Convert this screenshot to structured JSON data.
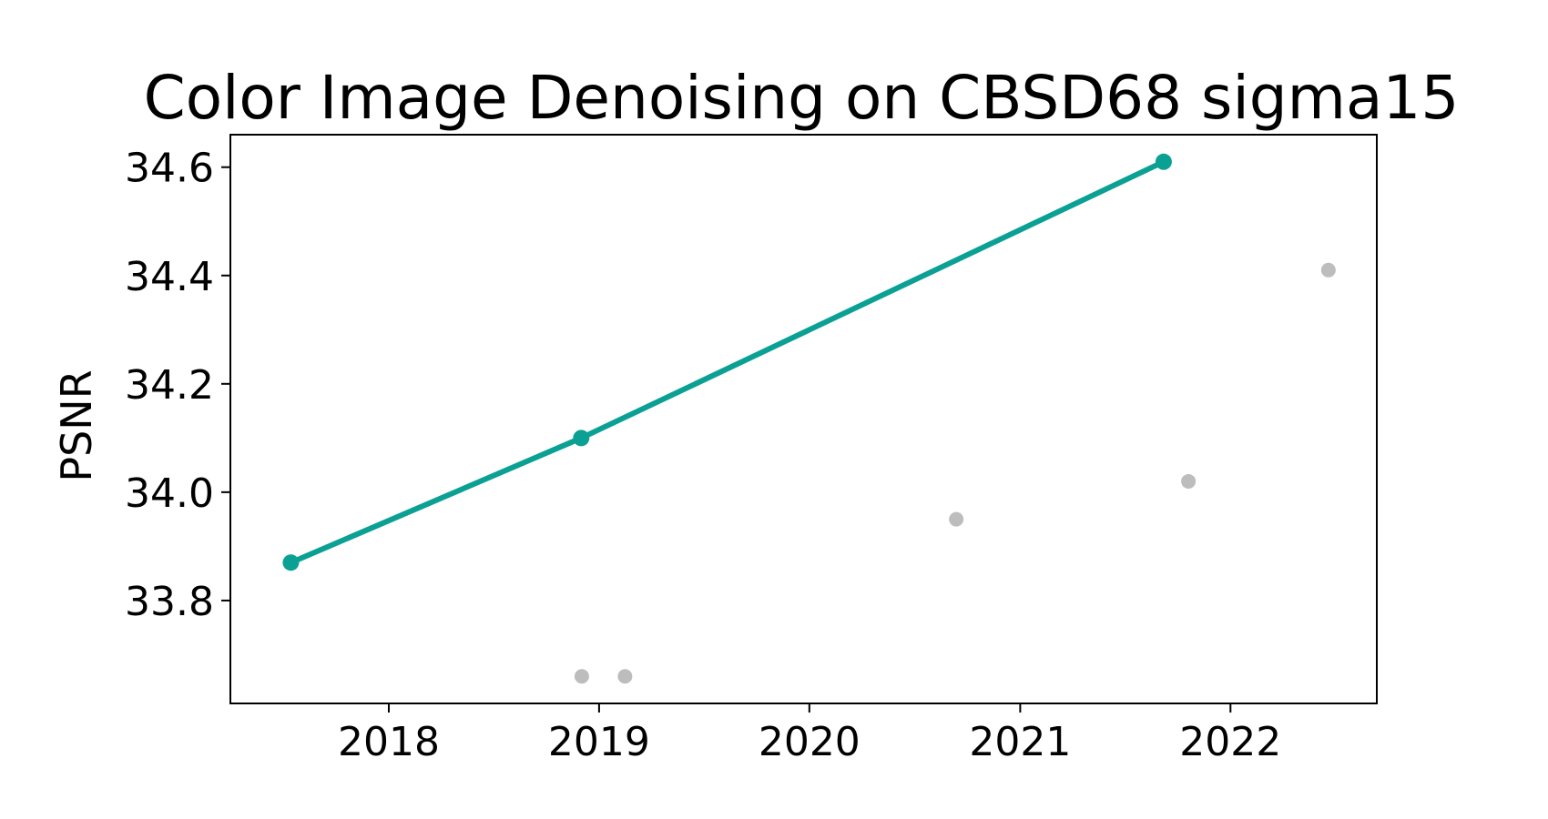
{
  "chart_data": {
    "type": "line",
    "title": "Color Image Denoising on CBSD68 sigma15",
    "xlabel": "",
    "ylabel": "PSNR",
    "xlim": [
      "2017-04-01",
      "2022-09-12"
    ],
    "ylim": [
      33.61,
      34.66
    ],
    "x_ticks": [
      "2018",
      "2019",
      "2020",
      "2021",
      "2022"
    ],
    "y_ticks": [
      "33.8",
      "34.0",
      "34.2",
      "34.4",
      "34.6"
    ],
    "grid": false,
    "series": [
      {
        "role": "state-of-the-art",
        "color": "#0aa094",
        "points": [
          {
            "x": "2017-07-15",
            "y": 33.87
          },
          {
            "x": "2018-12-01",
            "y": 34.1
          },
          {
            "x": "2021-09-07",
            "y": 34.61
          }
        ]
      },
      {
        "role": "other",
        "color": "#bdbdbd",
        "points": [
          {
            "x": "2018-12-02",
            "y": 33.66
          },
          {
            "x": "2019-02-15",
            "y": 33.66
          },
          {
            "x": "2020-09-12",
            "y": 33.95
          },
          {
            "x": "2021-10-20",
            "y": 34.02
          },
          {
            "x": "2022-06-20",
            "y": 34.41
          }
        ]
      }
    ]
  }
}
